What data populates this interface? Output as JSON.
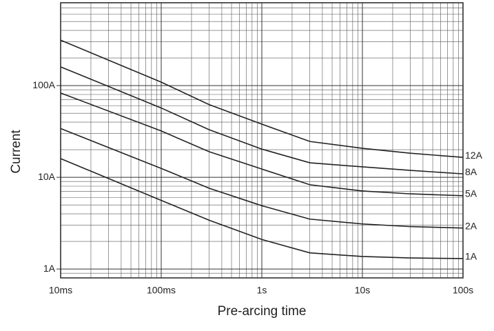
{
  "chart_data": {
    "type": "line",
    "log_x": true,
    "log_y": true,
    "grid": true,
    "x_label": "Pre-arcing time",
    "y_label": "Current",
    "x": [
      0.01,
      0.1,
      0.3,
      1,
      3,
      10,
      30,
      100
    ],
    "xlim": [
      0.01,
      100
    ],
    "xticks": [
      {
        "value": 0.01,
        "label": "10ms"
      },
      {
        "value": 0.1,
        "label": "100ms"
      },
      {
        "value": 1,
        "label": "1s"
      },
      {
        "value": 10,
        "label": "10s"
      },
      {
        "value": 100,
        "label": "100s"
      }
    ],
    "ylim": [
      0.8,
      800
    ],
    "yticks": [
      {
        "value": 1,
        "label": "1A"
      },
      {
        "value": 10,
        "label": "10A"
      },
      {
        "value": 100,
        "label": "100A"
      }
    ],
    "series": [
      {
        "name": "12A",
        "color": "#222222",
        "values": [
          313,
          109,
          62,
          38,
          24.6,
          20.7,
          18.3,
          16.5
        ]
      },
      {
        "name": "8A",
        "color": "#222222",
        "values": [
          160,
          57,
          33,
          20.3,
          14.4,
          13,
          11.9,
          10.9
        ]
      },
      {
        "name": "5A",
        "color": "#222222",
        "values": [
          83,
          32,
          19,
          12.3,
          8.3,
          7.1,
          6.6,
          6.3
        ]
      },
      {
        "name": "2A",
        "color": "#222222",
        "values": [
          34,
          12.5,
          7.6,
          4.9,
          3.5,
          3.1,
          2.9,
          2.8
        ]
      },
      {
        "name": "1A",
        "color": "#222222",
        "values": [
          16,
          5.6,
          3.4,
          2.1,
          1.5,
          1.37,
          1.32,
          1.3
        ]
      }
    ]
  }
}
